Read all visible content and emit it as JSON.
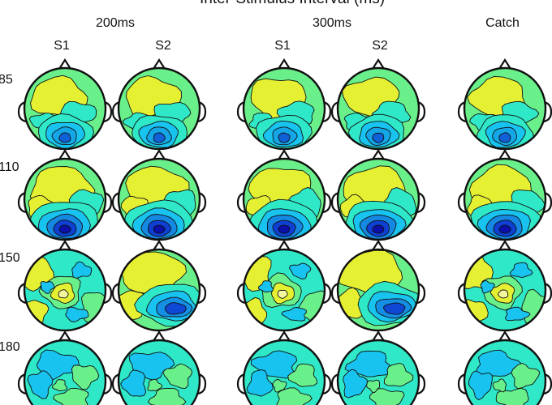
{
  "figure": {
    "title": "Inter-Stimulus Interval (ms)",
    "isi_groups": [
      {
        "label": "200ms",
        "stimuli": [
          "S1",
          "S2"
        ]
      },
      {
        "label": "300ms",
        "stimuli": [
          "S1",
          "S2"
        ]
      }
    ],
    "catch_label": "Catch",
    "time_rows": [
      "85",
      "110",
      "150",
      "180"
    ]
  },
  "colormap": {
    "low": "#0a1cd0",
    "mid_low": "#19c3f0",
    "mid": "#2fe8c8",
    "mid_high": "#6af08a",
    "high": "#e6f032",
    "contour": "#111111"
  },
  "maps": [
    {
      "row": "85",
      "column": "200ms S1",
      "pattern": "posterior-focus-weak"
    },
    {
      "row": "85",
      "column": "200ms S2",
      "pattern": "posterior-focus-weak"
    },
    {
      "row": "85",
      "column": "300ms S1",
      "pattern": "posterior-focus-weak"
    },
    {
      "row": "85",
      "column": "300ms S2",
      "pattern": "posterior-focus-weak"
    },
    {
      "row": "85",
      "column": "Catch",
      "pattern": "posterior-focus-weak"
    },
    {
      "row": "110",
      "column": "200ms S1",
      "pattern": "posterior-focus-strong"
    },
    {
      "row": "110",
      "column": "200ms S2",
      "pattern": "posterior-focus-strong"
    },
    {
      "row": "110",
      "column": "300ms S1",
      "pattern": "posterior-focus-strong"
    },
    {
      "row": "110",
      "column": "300ms S2",
      "pattern": "posterior-focus-strong"
    },
    {
      "row": "110",
      "column": "Catch",
      "pattern": "posterior-focus-strong"
    },
    {
      "row": "150",
      "column": "200ms S1",
      "pattern": "central-positive"
    },
    {
      "row": "150",
      "column": "200ms S2",
      "pattern": "right-posterior-negative"
    },
    {
      "row": "150",
      "column": "300ms S1",
      "pattern": "central-positive"
    },
    {
      "row": "150",
      "column": "300ms S2",
      "pattern": "right-posterior-negative"
    },
    {
      "row": "150",
      "column": "Catch",
      "pattern": "central-positive"
    },
    {
      "row": "180",
      "column": "200ms S1",
      "pattern": "diffuse"
    },
    {
      "row": "180",
      "column": "200ms S2",
      "pattern": "diffuse"
    },
    {
      "row": "180",
      "column": "300ms S1",
      "pattern": "diffuse"
    },
    {
      "row": "180",
      "column": "300ms S2",
      "pattern": "diffuse"
    },
    {
      "row": "180",
      "column": "Catch",
      "pattern": "diffuse"
    }
  ]
}
